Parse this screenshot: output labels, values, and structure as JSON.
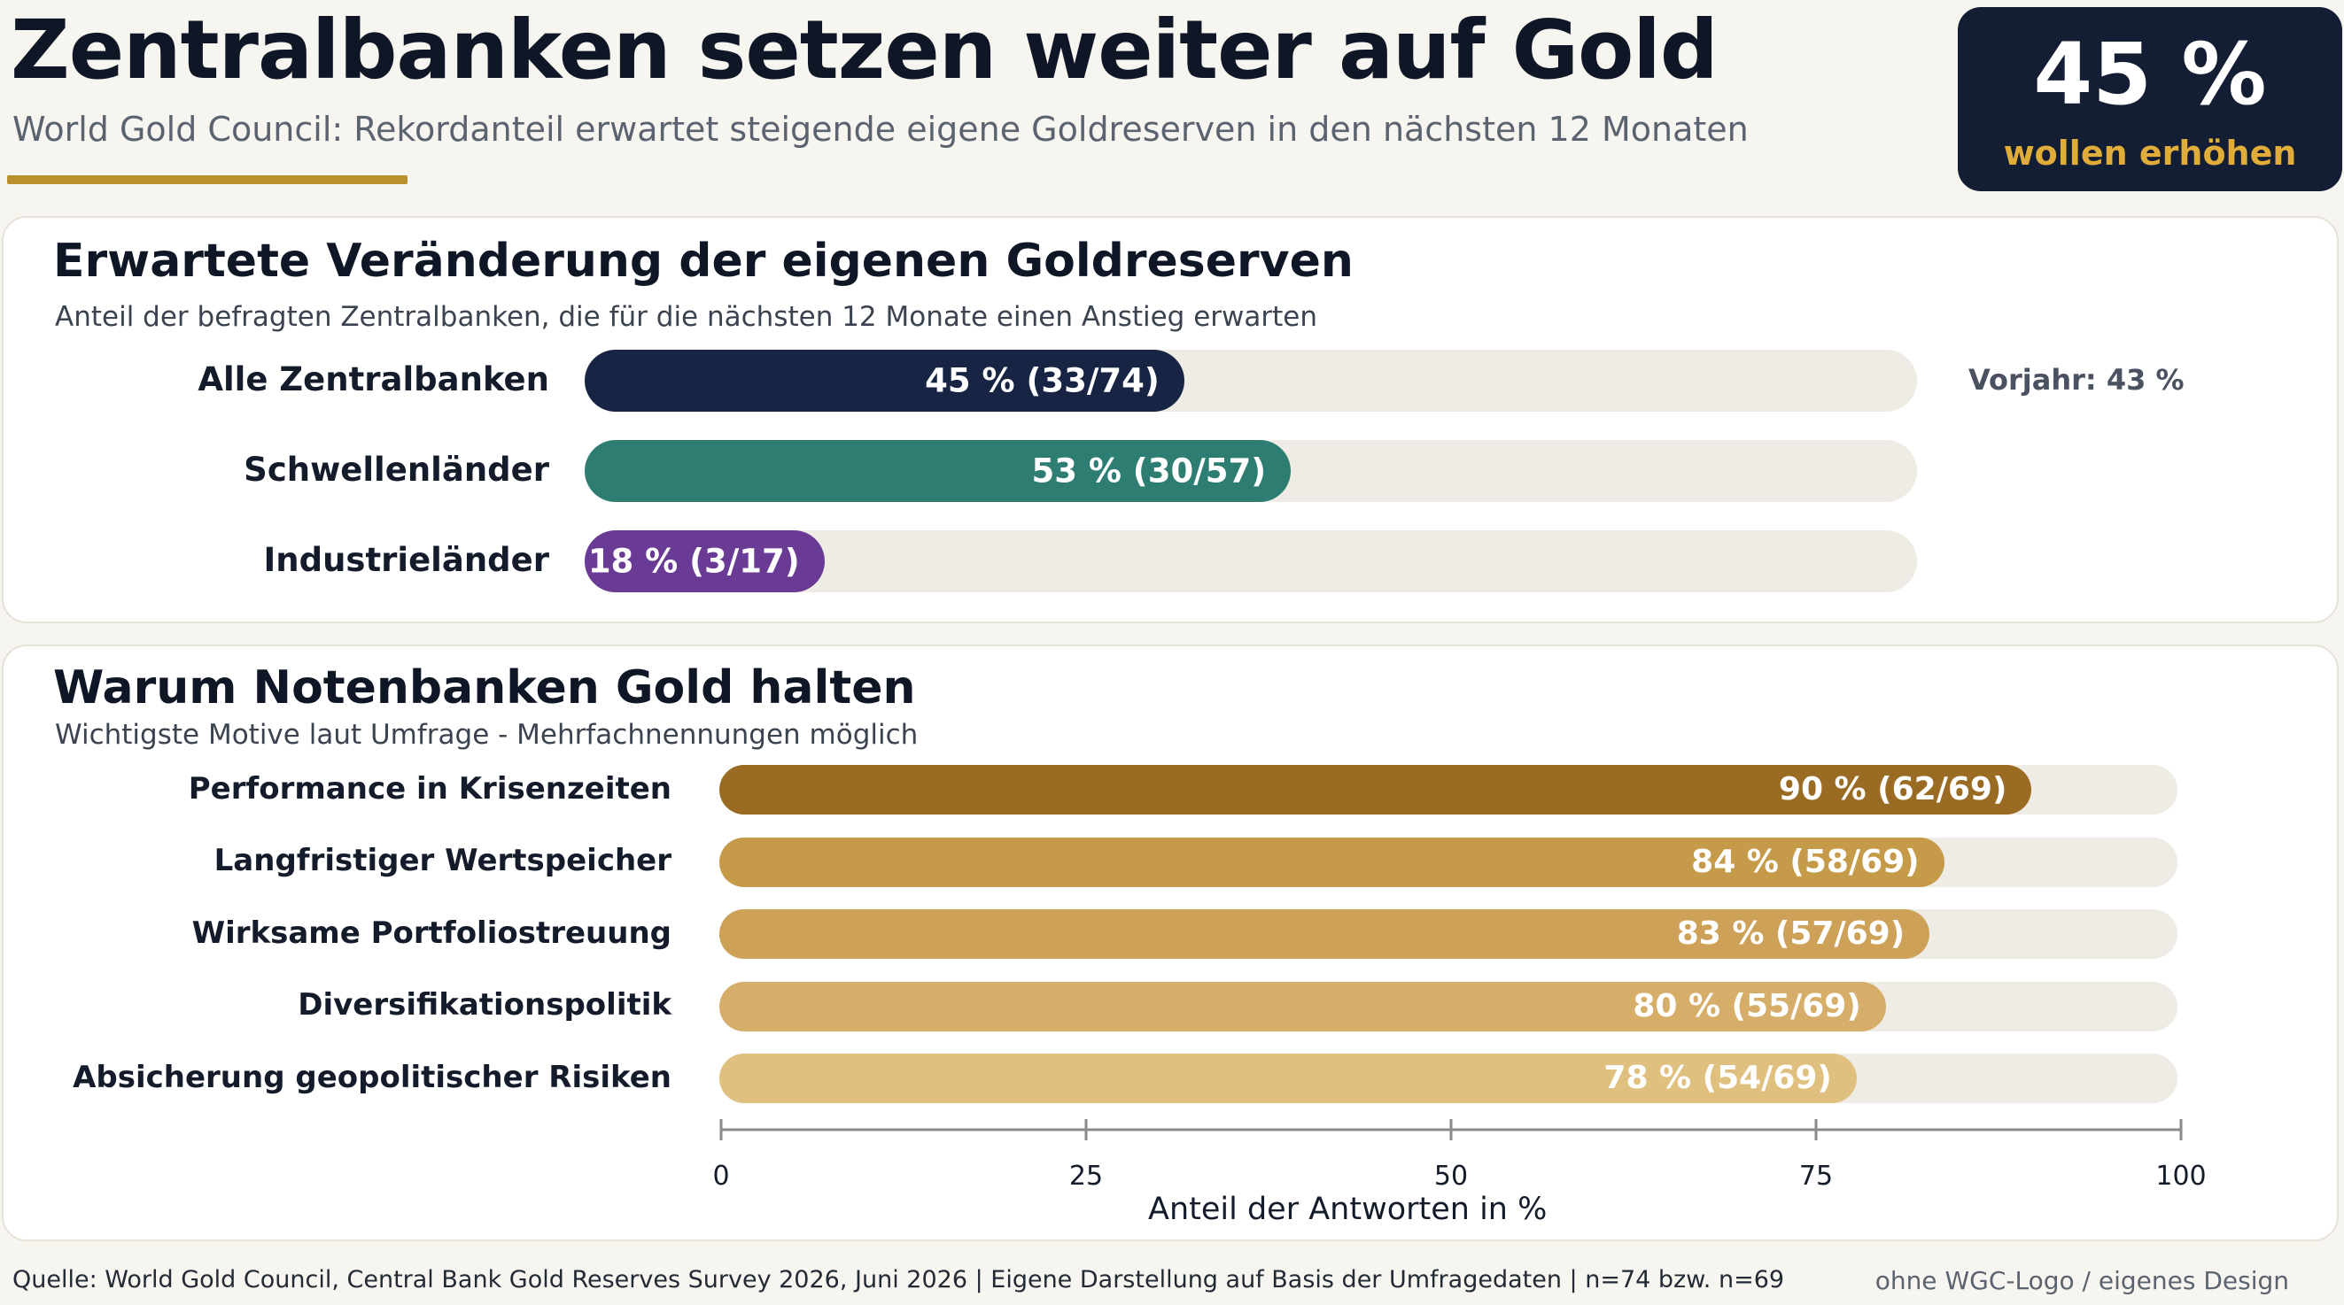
{
  "header": {
    "title": "Zentralbanken setzen weiter auf Gold",
    "subtitle": "World Gold Council: Rekordanteil erwartet steigende eigene Goldreserven in den nächsten 12 Monaten",
    "kpi_value": "45 %",
    "kpi_label": "wollen erhöhen"
  },
  "colors": {
    "navy": "#172444",
    "teal": "#2e7d72",
    "purple": "#6a3b95",
    "gold_accent": "#b8902e",
    "gold_shades": [
      "#9a6b22",
      "#c59a48",
      "#cea158",
      "#d6ae6a",
      "#e0c07f"
    ]
  },
  "chart_data": [
    {
      "type": "bar",
      "orientation": "horizontal",
      "title": "Erwartete Veränderung der eigenen Goldreserven",
      "subtitle": "Anteil der befragten Zentralbanken, die für die nächsten 12 Monate einen Anstieg erwarten",
      "categories": [
        "Alle Zentralbanken",
        "Schwellenländer",
        "Industrieländer"
      ],
      "values": [
        45,
        53,
        18
      ],
      "value_labels": [
        "45 % (33/74)",
        "53 % (30/57)",
        "18 % (3/17)"
      ],
      "xlim": [
        0,
        100
      ],
      "annotation": "Vorjahr: 43 %"
    },
    {
      "type": "bar",
      "orientation": "horizontal",
      "title": "Warum Notenbanken Gold halten",
      "subtitle": "Wichtigste Motive laut Umfrage - Mehrfachnennungen möglich",
      "categories": [
        "Performance in Krisenzeiten",
        "Langfristiger Wertspeicher",
        "Wirksame Portfoliostreuung",
        "Diversifikationspolitik",
        "Absicherung geopolitischer Risiken"
      ],
      "values": [
        90,
        84,
        83,
        80,
        78
      ],
      "value_labels": [
        "90 % (62/69)",
        "84 % (58/69)",
        "83 % (57/69)",
        "80 % (55/69)",
        "78 % (54/69)"
      ],
      "xlabel": "Anteil der Antworten in %",
      "xlim": [
        0,
        100
      ],
      "xticks": [
        0,
        25,
        50,
        75,
        100
      ],
      "grid": false
    }
  ],
  "footer": {
    "source": "Quelle: World Gold Council, Central Bank Gold Reserves Survey 2026, Juni 2026  |  Eigene Darstellung auf Basis der Umfragedaten  |  n=74 bzw. n=69",
    "note": "ohne WGC-Logo / eigenes Design"
  }
}
